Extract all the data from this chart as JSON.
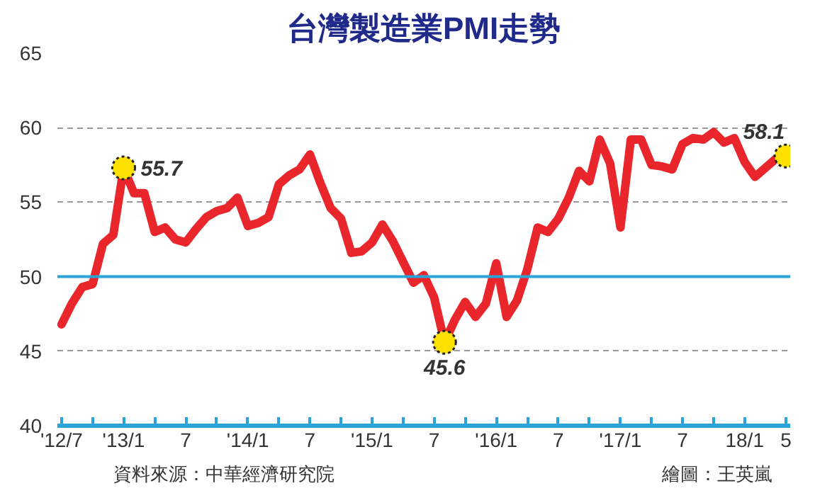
{
  "chart_data": {
    "type": "line",
    "title": "台灣製造業PMI走勢",
    "x": [
      "2012-07",
      "2012-08",
      "2012-09",
      "2012-10",
      "2012-11",
      "2012-12",
      "2013-01",
      "2013-02",
      "2013-03",
      "2013-04",
      "2013-05",
      "2013-06",
      "2013-07",
      "2013-08",
      "2013-09",
      "2013-10",
      "2013-11",
      "2013-12",
      "2014-01",
      "2014-02",
      "2014-03",
      "2014-04",
      "2014-05",
      "2014-06",
      "2014-07",
      "2014-08",
      "2014-09",
      "2014-10",
      "2014-11",
      "2014-12",
      "2015-01",
      "2015-02",
      "2015-03",
      "2015-04",
      "2015-05",
      "2015-06",
      "2015-07",
      "2015-08",
      "2015-09",
      "2015-10",
      "2015-11",
      "2015-12",
      "2016-01",
      "2016-02",
      "2016-03",
      "2016-04",
      "2016-05",
      "2016-06",
      "2016-07",
      "2016-08",
      "2016-09",
      "2016-10",
      "2016-11",
      "2016-12",
      "2017-01",
      "2017-02",
      "2017-03",
      "2017-04",
      "2017-05",
      "2017-06",
      "2017-07",
      "2017-08",
      "2017-09",
      "2017-10",
      "2017-11",
      "2017-12",
      "2018-01",
      "2018-02",
      "2018-03",
      "2018-04",
      "2018-05"
    ],
    "series": [
      {
        "color": "#e8262b",
        "values": [
          46.8,
          48.2,
          49.3,
          49.5,
          52.2,
          52.8,
          57.3,
          55.6,
          55.6,
          53.0,
          53.3,
          52.5,
          52.3,
          53.2,
          54.0,
          54.4,
          54.6,
          55.3,
          53.4,
          53.6,
          54.0,
          56.2,
          56.8,
          57.2,
          58.2,
          56.3,
          54.6,
          53.9,
          51.6,
          51.7,
          52.3,
          53.5,
          52.4,
          51.0,
          49.6,
          50.1,
          48.6,
          45.6,
          47.1,
          48.3,
          47.3,
          48.2,
          50.9,
          47.3,
          48.4,
          50.5,
          53.3,
          53.0,
          53.9,
          55.3,
          57.1,
          56.4,
          59.2,
          57.6,
          53.3,
          59.2,
          59.2,
          57.5,
          57.4,
          57.2,
          58.9,
          59.3,
          59.2,
          59.7,
          59.0,
          59.3,
          57.7,
          56.7,
          57.3,
          57.9,
          58.1
        ]
      }
    ],
    "xlim": [
      "2012-07",
      "2018-05"
    ],
    "xticks": [
      {
        "value": "2012-07",
        "label": "'12/7"
      },
      {
        "value": "2012-10",
        "label": null
      },
      {
        "value": "2013-01",
        "label": "'13/1"
      },
      {
        "value": "2013-04",
        "label": null
      },
      {
        "value": "2013-07",
        "label": "7"
      },
      {
        "value": "2013-10",
        "label": null
      },
      {
        "value": "2014-01",
        "label": "'14/1"
      },
      {
        "value": "2014-04",
        "label": null
      },
      {
        "value": "2014-07",
        "label": "7"
      },
      {
        "value": "2014-10",
        "label": null
      },
      {
        "value": "2015-01",
        "label": "'15/1"
      },
      {
        "value": "2015-04",
        "label": null
      },
      {
        "value": "2015-07",
        "label": "7"
      },
      {
        "value": "2015-10",
        "label": null
      },
      {
        "value": "2016-01",
        "label": "'16/1"
      },
      {
        "value": "2016-04",
        "label": null
      },
      {
        "value": "2016-07",
        "label": "7"
      },
      {
        "value": "2016-10",
        "label": null
      },
      {
        "value": "2017-01",
        "label": "'17/1"
      },
      {
        "value": "2017-04",
        "label": null
      },
      {
        "value": "2017-07",
        "label": "7"
      },
      {
        "value": "2017-10",
        "label": null
      },
      {
        "value": "2018-01",
        "label": "18/1"
      },
      {
        "value": "2018-05",
        "label": "5"
      }
    ],
    "ylim": [
      40,
      65
    ],
    "yticks": [
      40,
      45,
      50,
      55,
      60,
      65
    ],
    "grid": "y",
    "marker": "none",
    "line_style": "solid",
    "ref_lines": [
      {
        "axis": "y",
        "value": 50,
        "label": null,
        "color": "#29a3d8"
      }
    ],
    "annotations": [
      {
        "text": "55.7",
        "x": "2013-01",
        "y": 57.3
      },
      {
        "text": "45.6",
        "x": "2015-08",
        "y": 45.6
      },
      {
        "text": "58.1",
        "x": "2018-05",
        "y": 58.1
      },
      "資料來源：中華經濟研究院",
      "繪圖：王英嵐"
    ]
  }
}
